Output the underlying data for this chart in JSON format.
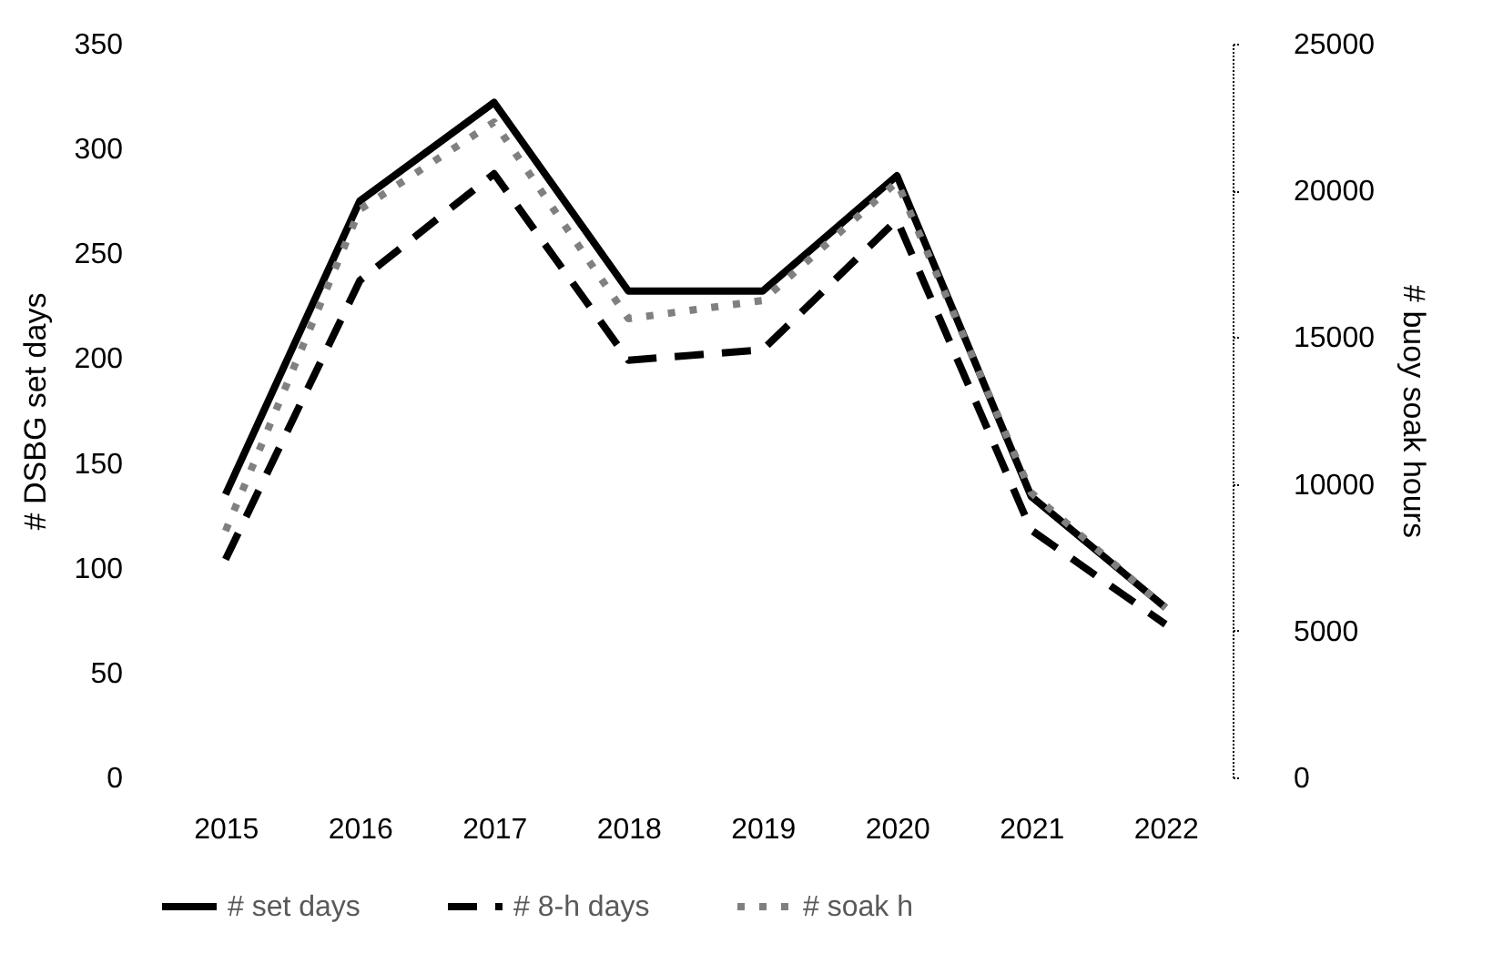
{
  "chart_data": {
    "type": "line",
    "ylabel": "# DSBG set days",
    "y2label": "# buoy soak hours",
    "categories": [
      "2015",
      "2016",
      "2017",
      "2018",
      "2019",
      "2020",
      "2021",
      "2022"
    ],
    "series": [
      {
        "name": "# set days",
        "color": "#000000",
        "line_style": "solid",
        "values": [
          135,
          275,
          322,
          232,
          232,
          287,
          134,
          81
        ]
      },
      {
        "name": "# 8-h days",
        "color": "#000000",
        "line_style": "dashed",
        "values": [
          104,
          237,
          288,
          199,
          204,
          266,
          118,
          73
        ]
      },
      {
        "name": "# soak h",
        "color": "#808080",
        "line_style": "dotted",
        "axis": "y2",
        "values": [
          8400,
          19350,
          22330,
          15630,
          16250,
          20290,
          9700,
          5770
        ]
      }
    ],
    "ylim": [
      0,
      350
    ],
    "yticks": [
      0,
      50,
      100,
      150,
      200,
      250,
      300,
      350
    ],
    "y2lim": [
      0,
      25000
    ],
    "y2ticks": [
      0,
      5000,
      10000,
      15000,
      20000,
      25000
    ],
    "legend": "bottom",
    "grid": false,
    "marker": "none"
  }
}
